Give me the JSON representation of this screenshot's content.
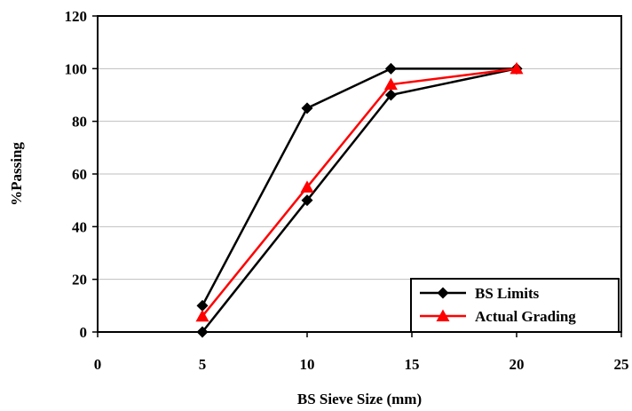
{
  "chart_data": {
    "type": "line",
    "xlabel": "BS Sieve Size (mm)",
    "ylabel": "%Passing",
    "xlim": [
      0,
      25
    ],
    "ylim": [
      0,
      120
    ],
    "xticks": [
      0,
      5,
      10,
      15,
      20,
      25
    ],
    "yticks": [
      0,
      20,
      40,
      60,
      80,
      100,
      120
    ],
    "grid": "horizontal",
    "legend_position": "bottom-right",
    "series": [
      {
        "name": "BS Limits",
        "color": "#000000",
        "marker": "diamond",
        "points": [
          [
            5,
            0
          ],
          [
            10,
            50
          ],
          [
            14,
            90
          ],
          [
            20,
            100
          ]
        ]
      },
      {
        "name": "",
        "color": "#000000",
        "marker": "diamond",
        "legend": false,
        "points": [
          [
            5,
            10
          ],
          [
            10,
            85
          ],
          [
            14,
            100
          ],
          [
            20,
            100
          ]
        ]
      },
      {
        "name": "Actual Grading",
        "color": "#ff0000",
        "marker": "triangle",
        "points": [
          [
            5,
            6
          ],
          [
            10,
            55
          ],
          [
            14,
            94
          ],
          [
            20,
            100
          ]
        ]
      }
    ]
  }
}
